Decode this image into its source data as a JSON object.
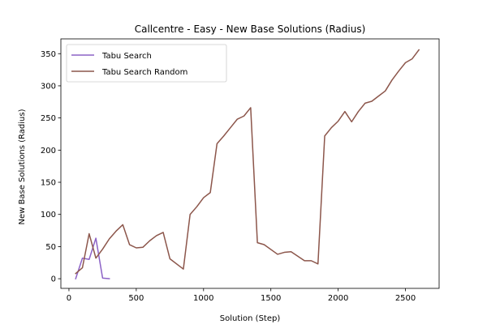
{
  "chart_data": {
    "type": "line",
    "title": "Callcentre - Easy - New Base Solutions (Radius)",
    "xlabel": "Solution (Step)",
    "ylabel": "New Base Solutions (Radius)",
    "xlim": [
      -60,
      2750
    ],
    "ylim": [
      -15,
      373
    ],
    "xticks": [
      0,
      500,
      1000,
      1500,
      2000,
      2500
    ],
    "yticks": [
      0,
      50,
      100,
      150,
      200,
      250,
      300,
      350
    ],
    "grid": false,
    "legend_position": "top-left",
    "series": [
      {
        "name": "Tabu Search",
        "color": "#8c62c6",
        "x": [
          50,
          100,
          150,
          200,
          250,
          300
        ],
        "y": [
          0,
          32,
          30,
          63,
          1,
          0
        ]
      },
      {
        "name": "Tabu Search Random",
        "color": "#8c564b",
        "x": [
          50,
          100,
          150,
          200,
          250,
          300,
          350,
          400,
          450,
          500,
          550,
          600,
          650,
          700,
          750,
          850,
          900,
          950,
          1000,
          1050,
          1100,
          1150,
          1200,
          1250,
          1300,
          1350,
          1400,
          1450,
          1550,
          1600,
          1650,
          1750,
          1800,
          1850,
          1900,
          1950,
          2000,
          2050,
          2100,
          2150,
          2200,
          2250,
          2300,
          2350,
          2400,
          2450,
          2500,
          2550,
          2600
        ],
        "y": [
          8,
          17,
          70,
          32,
          46,
          62,
          74,
          84,
          53,
          48,
          49,
          59,
          67,
          72,
          31,
          15,
          100,
          112,
          126,
          134,
          210,
          222,
          235,
          248,
          253,
          266,
          56,
          53,
          38,
          41,
          42,
          28,
          28,
          23,
          222,
          235,
          245,
          260,
          244,
          260,
          273,
          276,
          284,
          292,
          309,
          323,
          336,
          342,
          356
        ]
      }
    ]
  }
}
